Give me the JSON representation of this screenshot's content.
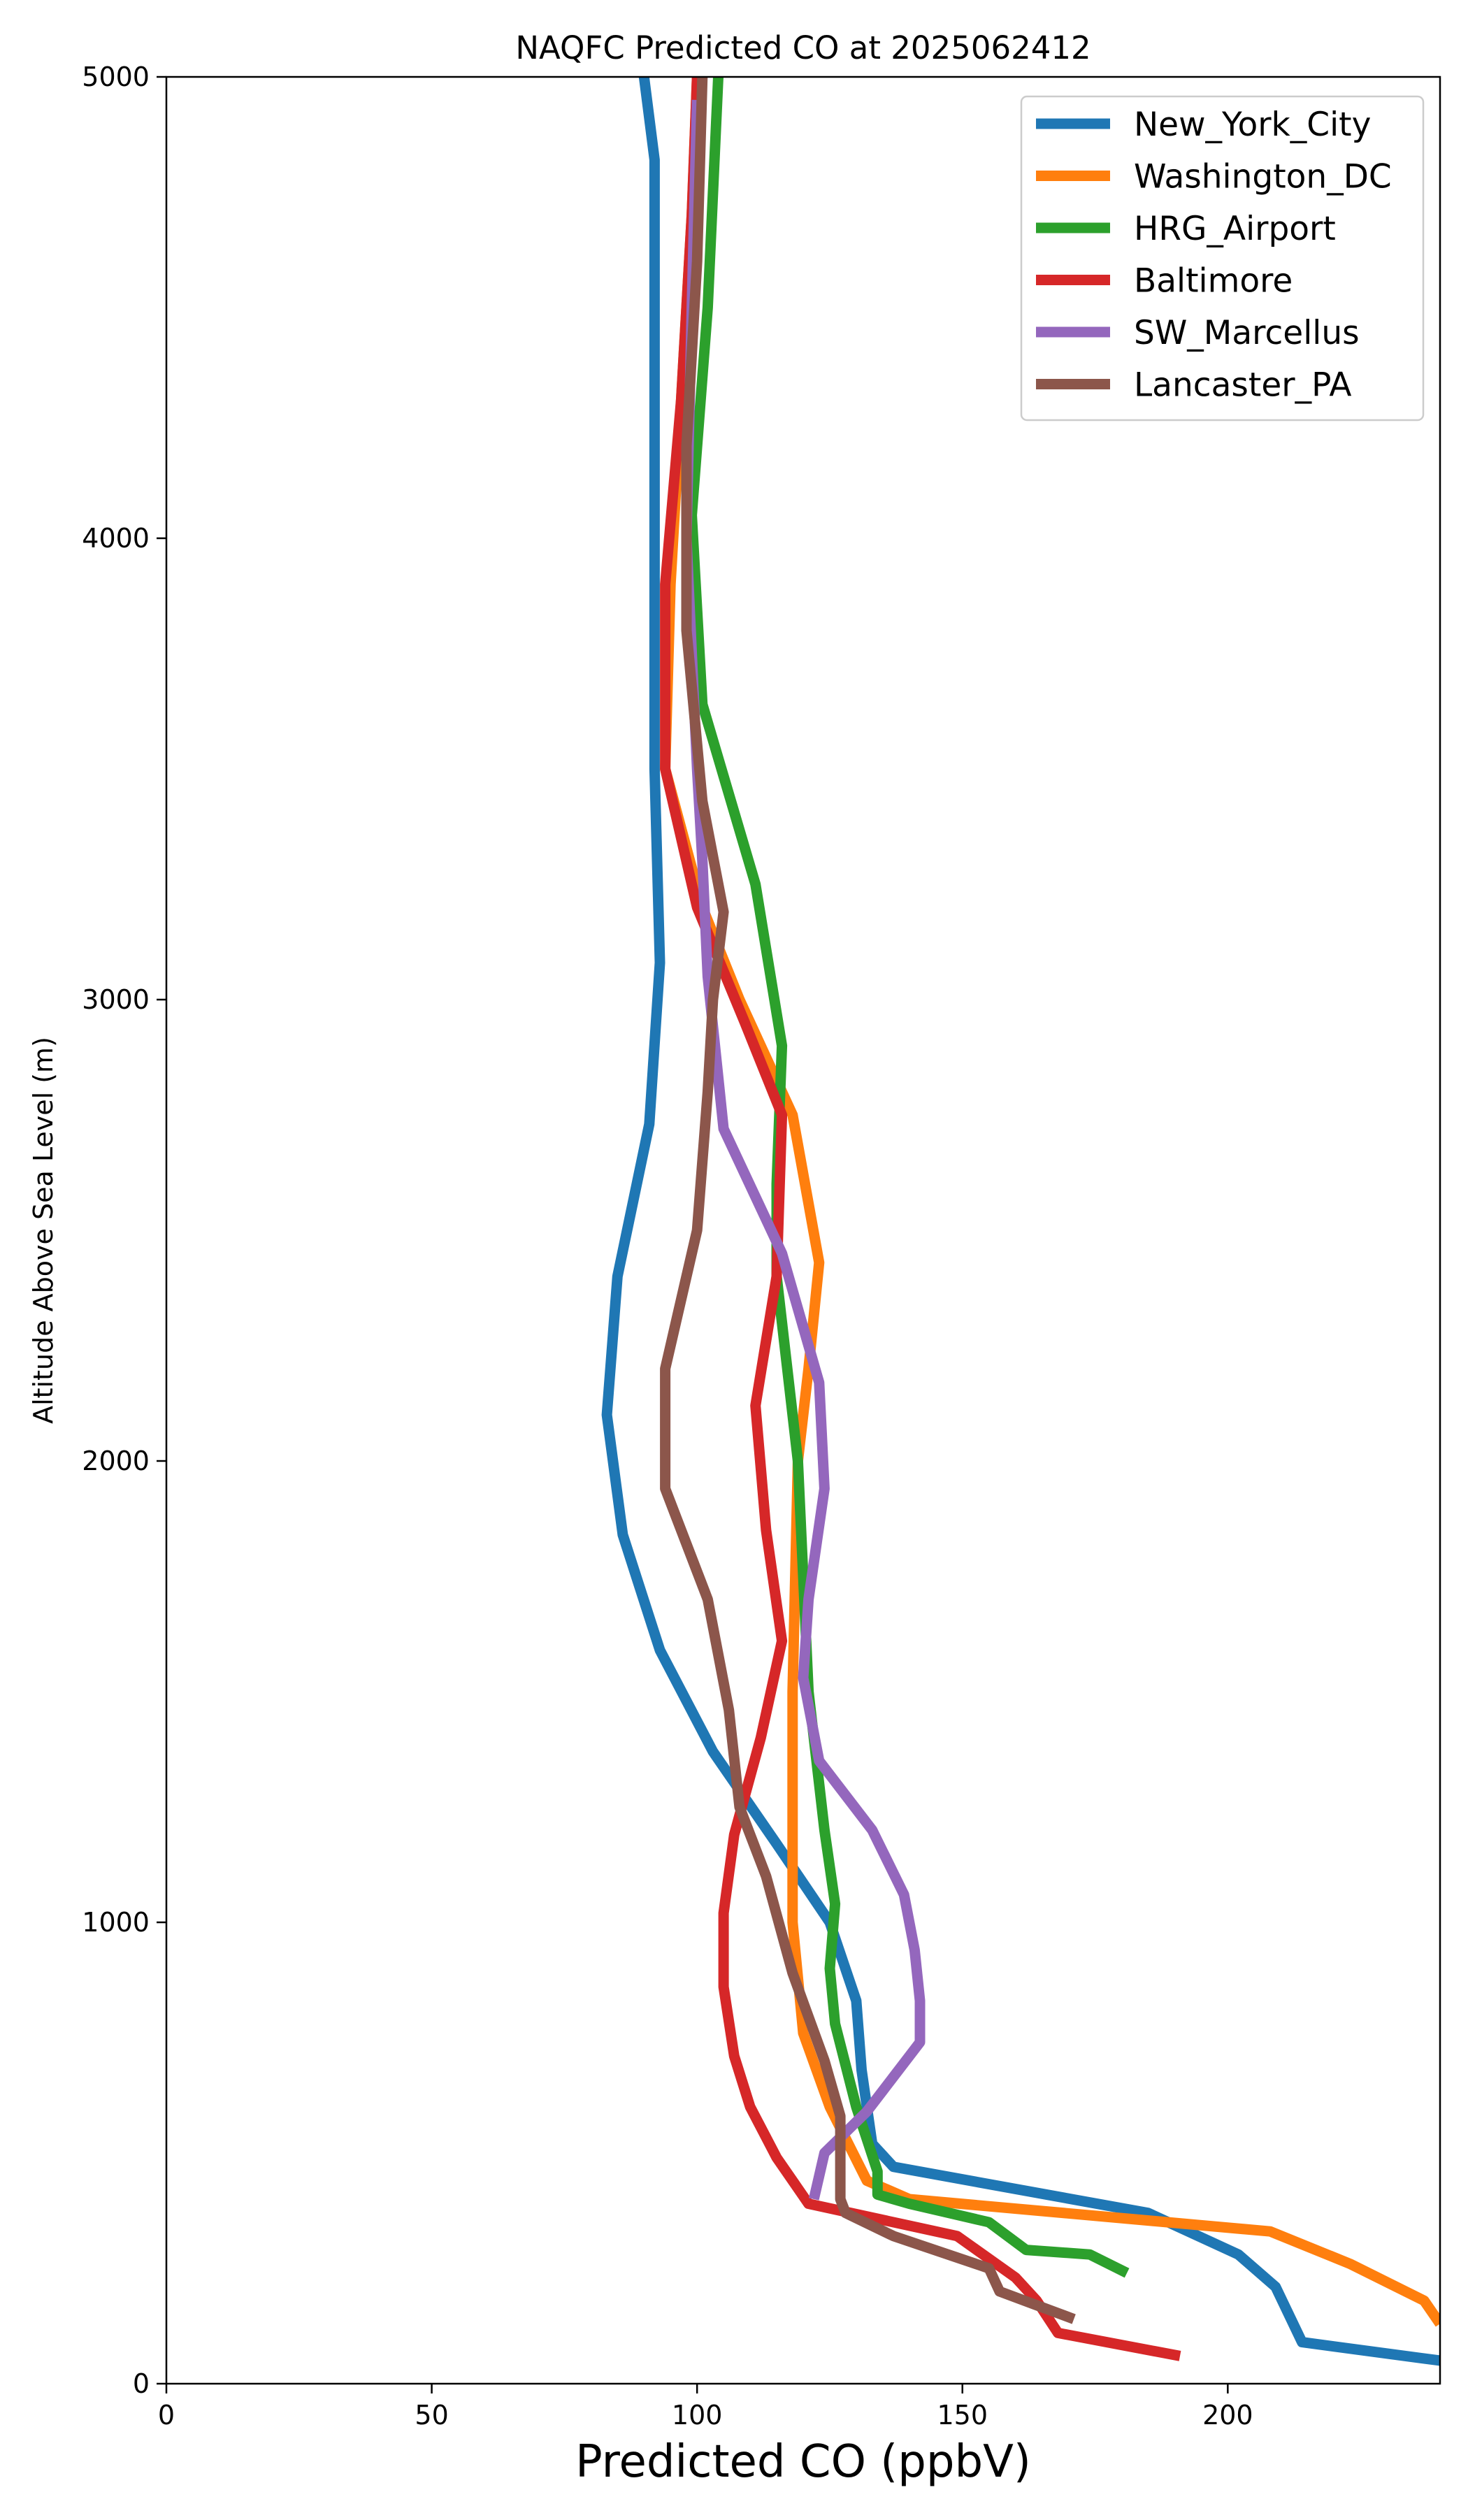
{
  "chart_data": {
    "type": "line",
    "title": "NAQFC Predicted CO at 2025062412",
    "xlabel": "Predicted CO (ppbV)",
    "ylabel": "Altitude Above Sea Level (m)",
    "xlim": [
      0,
      240
    ],
    "ylim": [
      0,
      5000
    ],
    "xticks": [
      "0",
      "50",
      "100",
      "150",
      "200"
    ],
    "yticks": [
      "0",
      "1000",
      "2000",
      "3000",
      "4000",
      "5000"
    ],
    "grid": false,
    "legend_position": "top-right",
    "series": [
      {
        "name": "New_York_City",
        "color": "#1f77b4",
        "points": [
          [
            240,
            50
          ],
          [
            214,
            90
          ],
          [
            209,
            210
          ],
          [
            202,
            280
          ],
          [
            185,
            370
          ],
          [
            137,
            470
          ],
          [
            133,
            520
          ],
          [
            131,
            680
          ],
          [
            130,
            830
          ],
          [
            125,
            1000
          ],
          [
            115,
            1170
          ],
          [
            103,
            1370
          ],
          [
            93,
            1590
          ],
          [
            86,
            1840
          ],
          [
            83,
            2100
          ],
          [
            85,
            2400
          ],
          [
            91,
            2730
          ],
          [
            93,
            3080
          ],
          [
            92,
            3500
          ],
          [
            92,
            3900
          ],
          [
            92,
            4400
          ],
          [
            92,
            4820
          ],
          [
            90,
            5000
          ]
        ]
      },
      {
        "name": "Washington_DC",
        "color": "#ff7f0e",
        "points": [
          [
            240,
            130
          ],
          [
            237,
            180
          ],
          [
            223,
            260
          ],
          [
            208,
            330
          ],
          [
            140,
            400
          ],
          [
            132,
            440
          ],
          [
            125,
            600
          ],
          [
            120,
            760
          ],
          [
            118,
            1000
          ],
          [
            118,
            1500
          ],
          [
            119,
            2000
          ],
          [
            121,
            2200
          ],
          [
            123,
            2430
          ],
          [
            118,
            2750
          ],
          [
            108,
            3000
          ],
          [
            101,
            3200
          ],
          [
            94,
            3500
          ],
          [
            95,
            3900
          ],
          [
            97,
            4300
          ],
          [
            99,
            4700
          ],
          [
            100,
            5000
          ]
        ]
      },
      {
        "name": "HRG_Airport",
        "color": "#2ca02c",
        "points": [
          [
            181,
            240
          ],
          [
            174,
            280
          ],
          [
            162,
            290
          ],
          [
            155,
            350
          ],
          [
            140,
            390
          ],
          [
            134,
            410
          ],
          [
            134,
            460
          ],
          [
            130,
            600
          ],
          [
            126,
            780
          ],
          [
            125,
            900
          ],
          [
            126,
            1040
          ],
          [
            124,
            1200
          ],
          [
            121,
            1500
          ],
          [
            119,
            2000
          ],
          [
            115,
            2400
          ],
          [
            115,
            2600
          ],
          [
            116,
            2900
          ],
          [
            111,
            3250
          ],
          [
            101,
            3640
          ],
          [
            99,
            4050
          ],
          [
            102,
            4500
          ],
          [
            104,
            5000
          ]
        ]
      },
      {
        "name": "Baltimore",
        "color": "#d62728",
        "points": [
          [
            191,
            60
          ],
          [
            168,
            110
          ],
          [
            164,
            180
          ],
          [
            160,
            230
          ],
          [
            149,
            320
          ],
          [
            121,
            390
          ],
          [
            115,
            490
          ],
          [
            110,
            600
          ],
          [
            107,
            710
          ],
          [
            105,
            860
          ],
          [
            105,
            1020
          ],
          [
            107,
            1190
          ],
          [
            112,
            1400
          ],
          [
            116,
            1610
          ],
          [
            113,
            1850
          ],
          [
            111,
            2120
          ],
          [
            115,
            2400
          ],
          [
            116,
            2750
          ],
          [
            109,
            2950
          ],
          [
            100,
            3200
          ],
          [
            94,
            3500
          ],
          [
            94,
            3900
          ],
          [
            97,
            4300
          ],
          [
            99,
            4700
          ],
          [
            100,
            5000
          ]
        ]
      },
      {
        "name": "SW_Marcellus",
        "color": "#9467bd",
        "points": [
          [
            122,
            400
          ],
          [
            124,
            500
          ],
          [
            132,
            590
          ],
          [
            142,
            740
          ],
          [
            142,
            830
          ],
          [
            141,
            940
          ],
          [
            139,
            1060
          ],
          [
            133,
            1200
          ],
          [
            123,
            1350
          ],
          [
            120,
            1530
          ],
          [
            121,
            1700
          ],
          [
            124,
            1940
          ],
          [
            123,
            2170
          ],
          [
            116,
            2450
          ],
          [
            105,
            2720
          ],
          [
            102,
            3050
          ],
          [
            101,
            3300
          ],
          [
            100,
            3500
          ],
          [
            98,
            4000
          ],
          [
            99,
            4500
          ],
          [
            100,
            4950
          ]
        ]
      },
      {
        "name": "Lancaster_PA",
        "color": "#8c564b",
        "points": [
          [
            171,
            140
          ],
          [
            157,
            200
          ],
          [
            155,
            250
          ],
          [
            137,
            320
          ],
          [
            128,
            370
          ],
          [
            127,
            400
          ],
          [
            127,
            580
          ],
          [
            124,
            700
          ],
          [
            118,
            890
          ],
          [
            113,
            1100
          ],
          [
            108,
            1250
          ],
          [
            106,
            1460
          ],
          [
            102,
            1700
          ],
          [
            94,
            1940
          ],
          [
            94,
            2200
          ],
          [
            100,
            2500
          ],
          [
            102,
            2800
          ],
          [
            103,
            3000
          ],
          [
            105,
            3190
          ],
          [
            101,
            3430
          ],
          [
            98,
            3800
          ],
          [
            98,
            4200
          ],
          [
            100,
            4600
          ],
          [
            101,
            5000
          ]
        ]
      }
    ]
  }
}
